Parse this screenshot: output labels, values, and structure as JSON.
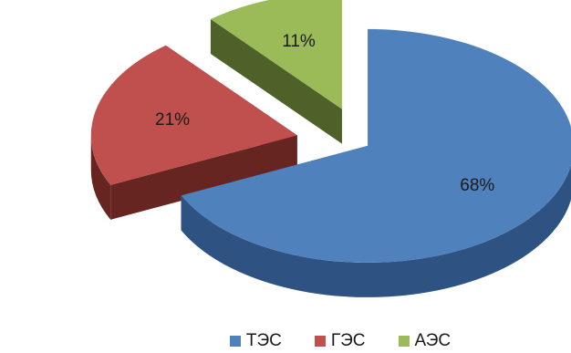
{
  "chart_data": {
    "type": "pie",
    "style": "3d-exploded",
    "slices": [
      {
        "label": "ТЭС",
        "value": 68,
        "value_label": "68%",
        "color": "#4F81BD",
        "side_color": "#2E5382"
      },
      {
        "label": "ГЭС",
        "value": 21,
        "value_label": "21%",
        "color": "#C0504D",
        "side_color": "#672522"
      },
      {
        "label": "АЭС",
        "value": 11,
        "value_label": "11%",
        "color": "#9BBB59",
        "side_color": "#4E6129"
      }
    ],
    "legend_position": "bottom"
  }
}
